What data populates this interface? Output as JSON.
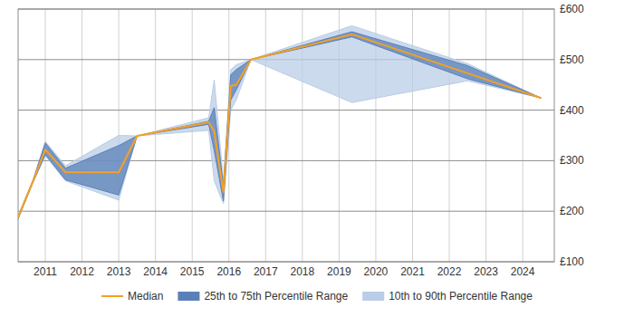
{
  "chart_data": {
    "type": "line",
    "x": [
      2010.26,
      2010.67,
      2011.0,
      2011.55,
      2013.0,
      2013.5,
      2015.45,
      2015.6,
      2015.85,
      2016.05,
      2016.2,
      2016.6,
      2019.35,
      2022.5,
      2024.5
    ],
    "xlim": [
      2010.26,
      2024.86
    ],
    "xticks": [
      2011,
      2012,
      2013,
      2014,
      2015,
      2016,
      2017,
      2018,
      2019,
      2020,
      2021,
      2022,
      2023,
      2024
    ],
    "ylim": [
      100,
      600
    ],
    "yticks": [
      {
        "value": 100,
        "label": "£100"
      },
      {
        "value": 200,
        "label": "£200"
      },
      {
        "value": 300,
        "label": "£300"
      },
      {
        "value": 400,
        "label": "£400"
      },
      {
        "value": 500,
        "label": "£500"
      },
      {
        "value": 600,
        "label": "£600"
      }
    ],
    "grid": true,
    "legend": "bottom",
    "series": [
      {
        "name": "Median",
        "type": "line",
        "color": "#f4a024",
        "values": [
          188,
          260,
          322,
          277,
          277,
          349,
          376,
          358,
          238,
          448,
          450,
          500,
          550,
          473,
          424
        ]
      },
      {
        "name": "25th to 75th Percentile Range",
        "type": "area",
        "color": "#5b80b8",
        "low": [
          185,
          258,
          312,
          262,
          232,
          349,
          372,
          320,
          220,
          420,
          440,
          500,
          545,
          462,
          424
        ],
        "high": [
          190,
          262,
          335,
          285,
          330,
          349,
          378,
          405,
          250,
          470,
          480,
          500,
          555,
          488,
          424
        ]
      },
      {
        "name": "10th to 90th Percentile Range",
        "type": "area",
        "color": "#b9cde6",
        "low": [
          185,
          258,
          310,
          260,
          222,
          349,
          360,
          260,
          215,
          400,
          420,
          500,
          415,
          458,
          424
        ],
        "high": [
          190,
          262,
          338,
          290,
          350,
          349,
          385,
          460,
          260,
          480,
          490,
          500,
          567,
          492,
          424
        ]
      }
    ]
  }
}
